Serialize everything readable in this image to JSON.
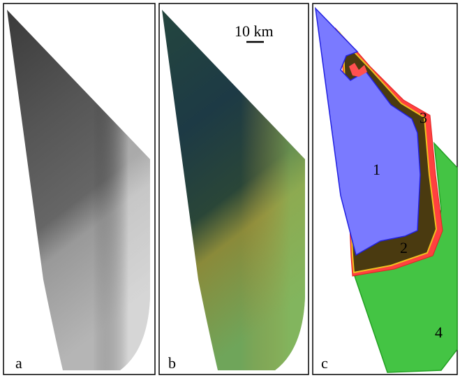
{
  "panels": [
    {
      "label": "a"
    },
    {
      "label": "b",
      "scale_bar": "10 km"
    },
    {
      "label": "c",
      "regions": [
        "1",
        "2",
        "3",
        "4"
      ]
    }
  ]
}
